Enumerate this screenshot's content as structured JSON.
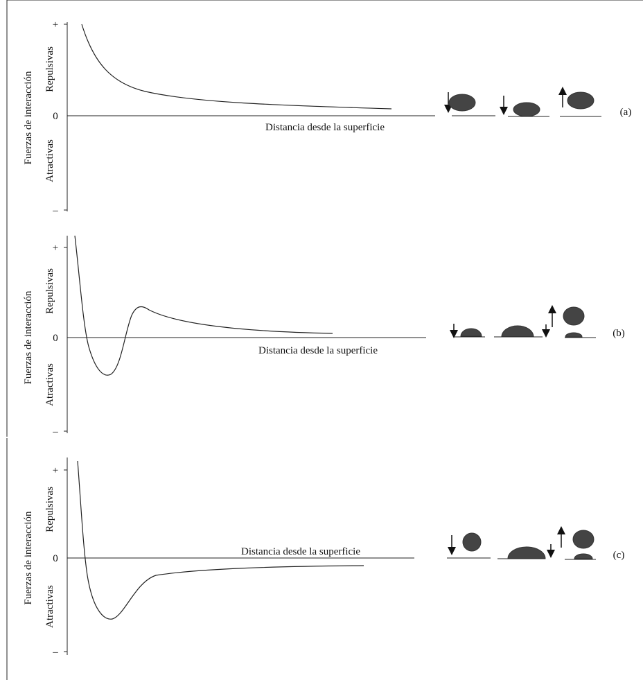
{
  "panels": [
    {
      "y_label": "Fuerzas de interacción",
      "repulsive_label": "Repulsivas",
      "attractive_label": "Atractivas",
      "plus": "+",
      "zero": "0",
      "minus": "–",
      "x_label": "Distancia desde la superficie",
      "tag": "(a)"
    },
    {
      "y_label": "Fuerzas de interacción",
      "repulsive_label": "Repulsivas",
      "attractive_label": "Atractivas",
      "plus": "+",
      "zero": "0",
      "minus": "–",
      "x_label": "Distancia desde la superficie",
      "tag": "(b)"
    },
    {
      "y_label": "Fuerzas de interacción",
      "repulsive_label": "Repulsivas",
      "attractive_label": "Atractivas",
      "plus": "+",
      "zero": "0",
      "minus": "–",
      "x_label": "Distancia desde la superficie",
      "tag": "(c)"
    }
  ]
}
